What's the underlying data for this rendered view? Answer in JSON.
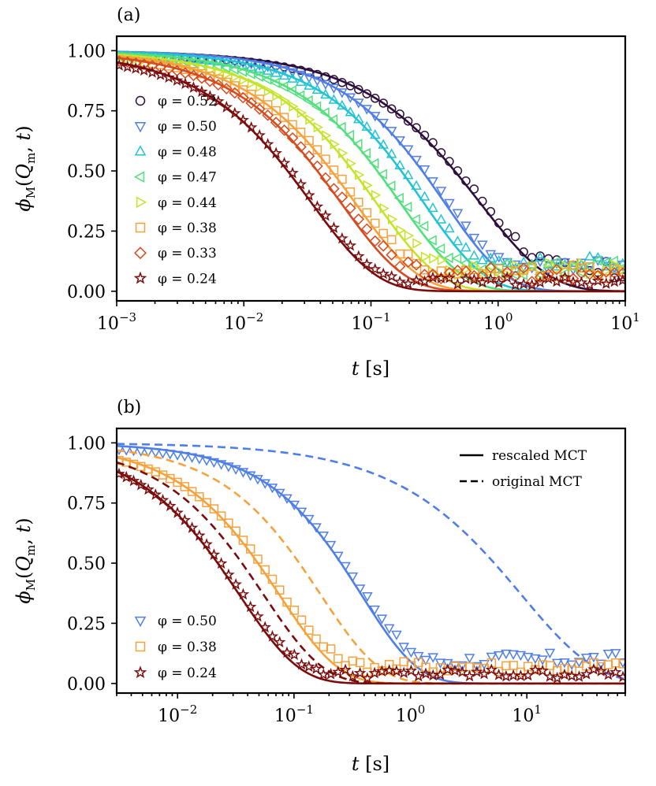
{
  "chart_data": [
    {
      "type": "line",
      "panel_label": "(a)",
      "xscale": "log",
      "xlim": [
        0.001,
        10
      ],
      "ylim": [
        -0.04,
        1.06
      ],
      "xlabel": "t [s]",
      "ylabel": "ϕM(Qm, t)",
      "xticks": [
        "10",
        "10",
        "10",
        "10",
        "10"
      ],
      "xtick_exps": [
        "−3",
        "−2",
        "−1",
        "0",
        "1"
      ],
      "yticks": [
        "0.00",
        "0.25",
        "0.50",
        "0.75",
        "1.00"
      ],
      "legend_position": "left",
      "series": [
        {
          "name": "φ = 0.52",
          "label": "φ = 0.52",
          "color": "#2e0f3a",
          "marker": "circle",
          "tau": 0.72,
          "beta": 0.8,
          "plateau": 0.08,
          "noise": 0.05
        },
        {
          "name": "φ = 0.50",
          "label": "φ = 0.50",
          "color": "#4f7fe6",
          "marker": "triangle-down",
          "tau": 0.38,
          "beta": 0.9,
          "plateau": 0.12,
          "noise": 0.03
        },
        {
          "name": "φ = 0.48",
          "label": "φ = 0.48",
          "color": "#22c4d4",
          "marker": "triangle-up",
          "tau": 0.26,
          "beta": 0.9,
          "plateau": 0.12,
          "noise": 0.03
        },
        {
          "name": "φ = 0.47",
          "label": "φ = 0.47",
          "color": "#52e07e",
          "marker": "triangle-left",
          "tau": 0.17,
          "beta": 0.88,
          "plateau": 0.1,
          "noise": 0.03
        },
        {
          "name": "φ = 0.44",
          "label": "φ = 0.44",
          "color": "#c6e22a",
          "marker": "triangle-right",
          "tau": 0.11,
          "beta": 0.87,
          "plateau": 0.09,
          "noise": 0.03
        },
        {
          "name": "φ = 0.38",
          "label": "φ = 0.38",
          "color": "#f5a23c",
          "marker": "square",
          "tau": 0.075,
          "beta": 0.86,
          "plateau": 0.08,
          "noise": 0.03
        },
        {
          "name": "φ = 0.33",
          "label": "φ = 0.33",
          "color": "#d64b1f",
          "marker": "diamond",
          "tau": 0.058,
          "beta": 0.86,
          "plateau": 0.07,
          "noise": 0.03
        },
        {
          "name": "φ = 0.24",
          "label": "φ = 0.24",
          "color": "#7a0c0c",
          "marker": "star",
          "tau": 0.034,
          "beta": 0.85,
          "plateau": 0.04,
          "noise": 0.02
        }
      ]
    },
    {
      "type": "line",
      "panel_label": "(b)",
      "xscale": "log",
      "xlim": [
        0.003,
        70
      ],
      "ylim": [
        -0.04,
        1.06
      ],
      "xlabel": "t [s]",
      "ylabel": "ϕM(Qm, t)",
      "xticks": [
        "10",
        "10",
        "10",
        "10"
      ],
      "xtick_exps": [
        "−2",
        "−1",
        "0",
        "1"
      ],
      "yticks": [
        "0.00",
        "0.25",
        "0.50",
        "0.75",
        "1.00"
      ],
      "style_legend": [
        {
          "label": "rescaled MCT",
          "style": "solid"
        },
        {
          "label": "original MCT",
          "style": "dashed"
        }
      ],
      "series": [
        {
          "name": "φ = 0.50",
          "label": "φ = 0.50",
          "color": "#4f7fe6",
          "marker": "triangle-down",
          "tau": 0.38,
          "beta": 0.9,
          "plateau": 0.1,
          "noise": 0.03,
          "orig_tau": 9.0,
          "orig_beta": 0.68
        },
        {
          "name": "φ = 0.38",
          "label": "φ = 0.38",
          "color": "#f5a23c",
          "marker": "square",
          "tau": 0.075,
          "beta": 0.86,
          "plateau": 0.07,
          "noise": 0.025,
          "orig_tau": 0.17,
          "orig_beta": 0.86
        },
        {
          "name": "φ = 0.24",
          "label": "φ = 0.24",
          "color": "#7a0c0c",
          "marker": "star",
          "tau": 0.034,
          "beta": 0.85,
          "plateau": 0.04,
          "noise": 0.02,
          "orig_tau": 0.055,
          "orig_beta": 0.85
        }
      ]
    }
  ]
}
